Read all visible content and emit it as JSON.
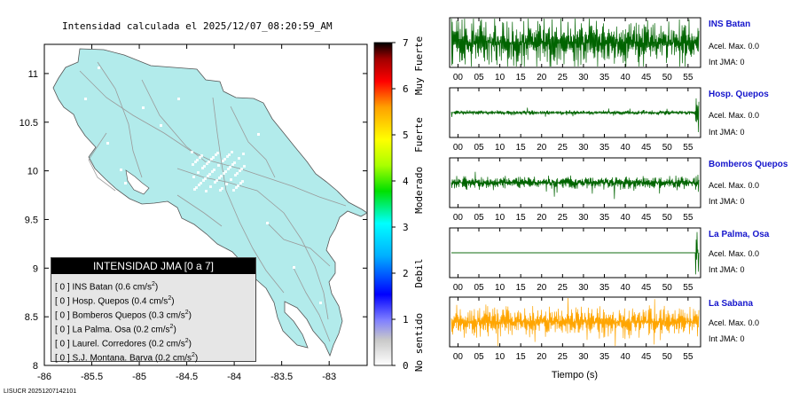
{
  "header": {
    "title": "Intensidad calculada el 2025/12/07_08:20:59_AM"
  },
  "footer": {
    "label": "LISUCR 20251207142101"
  },
  "map": {
    "fill_color": "#b2ebeb",
    "x_ticks": [
      "-86",
      "-85.5",
      "-85",
      "-84.5",
      "-84",
      "-83.5",
      "-83"
    ],
    "y_ticks": [
      "8",
      "8.5",
      "9",
      "9.5",
      "10",
      "10.5",
      "11"
    ]
  },
  "legend": {
    "title": "INTENSIDAD JMA [0 a 7]",
    "rows": [
      {
        "level": "[ 0 ]",
        "name": "INS Batan",
        "value": "(0.6 cm/s",
        "sup": "2",
        "close": ")"
      },
      {
        "level": "[ 0 ]",
        "name": "Hosp. Quepos",
        "value": "(0.4 cm/s",
        "sup": "2",
        "close": ")"
      },
      {
        "level": "[ 0 ]",
        "name": "Bomberos Quepos",
        "value": "(0.3 cm/s",
        "sup": "2",
        "close": ")"
      },
      {
        "level": "[ 0 ]",
        "name": "La Palma. Osa",
        "value": "(0.2 cm/s",
        "sup": "2",
        "close": ")"
      },
      {
        "level": "[ 0 ]",
        "name": "Laurel. Corredores",
        "value": "(0.2 cm/s",
        "sup": "2",
        "close": ")"
      },
      {
        "level": "[ 0 ]",
        "name": "S.J. Montana. Barva",
        "value": "(0.2 cm/s",
        "sup": "2",
        "close": ")"
      }
    ]
  },
  "colorbar": {
    "ticks": [
      "0",
      "1",
      "2",
      "3",
      "4",
      "5",
      "6",
      "7"
    ],
    "categories": [
      "No sentido",
      "Debil",
      "Moderado",
      "Fuerte",
      "Muy Fuerte"
    ]
  },
  "waveforms": {
    "x_ticks": [
      "00",
      "05",
      "10",
      "15",
      "20",
      "25",
      "30",
      "35",
      "40",
      "45",
      "50",
      "55"
    ],
    "xlabel": "Tiempo (s)",
    "stations": [
      {
        "name": "INS Batan",
        "acel": "Acel. Max. 0.0",
        "int": "Int JMA: 0",
        "color": "#006400"
      },
      {
        "name": "Hosp. Quepos",
        "acel": "Acel. Max. 0.0",
        "int": "Int JMA: 0",
        "color": "#006400"
      },
      {
        "name": "Bomberos Quepos",
        "acel": "Acel. Max. 0.0",
        "int": "Int JMA: 0",
        "color": "#006400"
      },
      {
        "name": "La Palma, Osa",
        "acel": "Acel. Max. 0.0",
        "int": "Int JMA: 0",
        "color": "#006400"
      },
      {
        "name": "La Sabana",
        "acel": "Acel. Max. 0.0",
        "int": "Int JMA: 0",
        "color": "#ffa500"
      }
    ]
  },
  "chart_data": {
    "type": "line",
    "xlabel": "Tiempo (s)",
    "xlim": [
      -2,
      58
    ],
    "series": [
      {
        "name": "INS Batan",
        "peak_acceleration": 0.0,
        "jma_intensity": 0
      },
      {
        "name": "Hosp. Quepos",
        "peak_acceleration": 0.0,
        "jma_intensity": 0
      },
      {
        "name": "Bomberos Quepos",
        "peak_acceleration": 0.0,
        "jma_intensity": 0
      },
      {
        "name": "La Palma, Osa",
        "peak_acceleration": 0.0,
        "jma_intensity": 0
      },
      {
        "name": "La Sabana",
        "peak_acceleration": 0.0,
        "jma_intensity": 0
      }
    ],
    "map_xlim": [
      -86,
      -82.6
    ],
    "map_ylim": [
      8,
      11.3
    ],
    "colorbar_range": [
      0,
      7
    ]
  }
}
